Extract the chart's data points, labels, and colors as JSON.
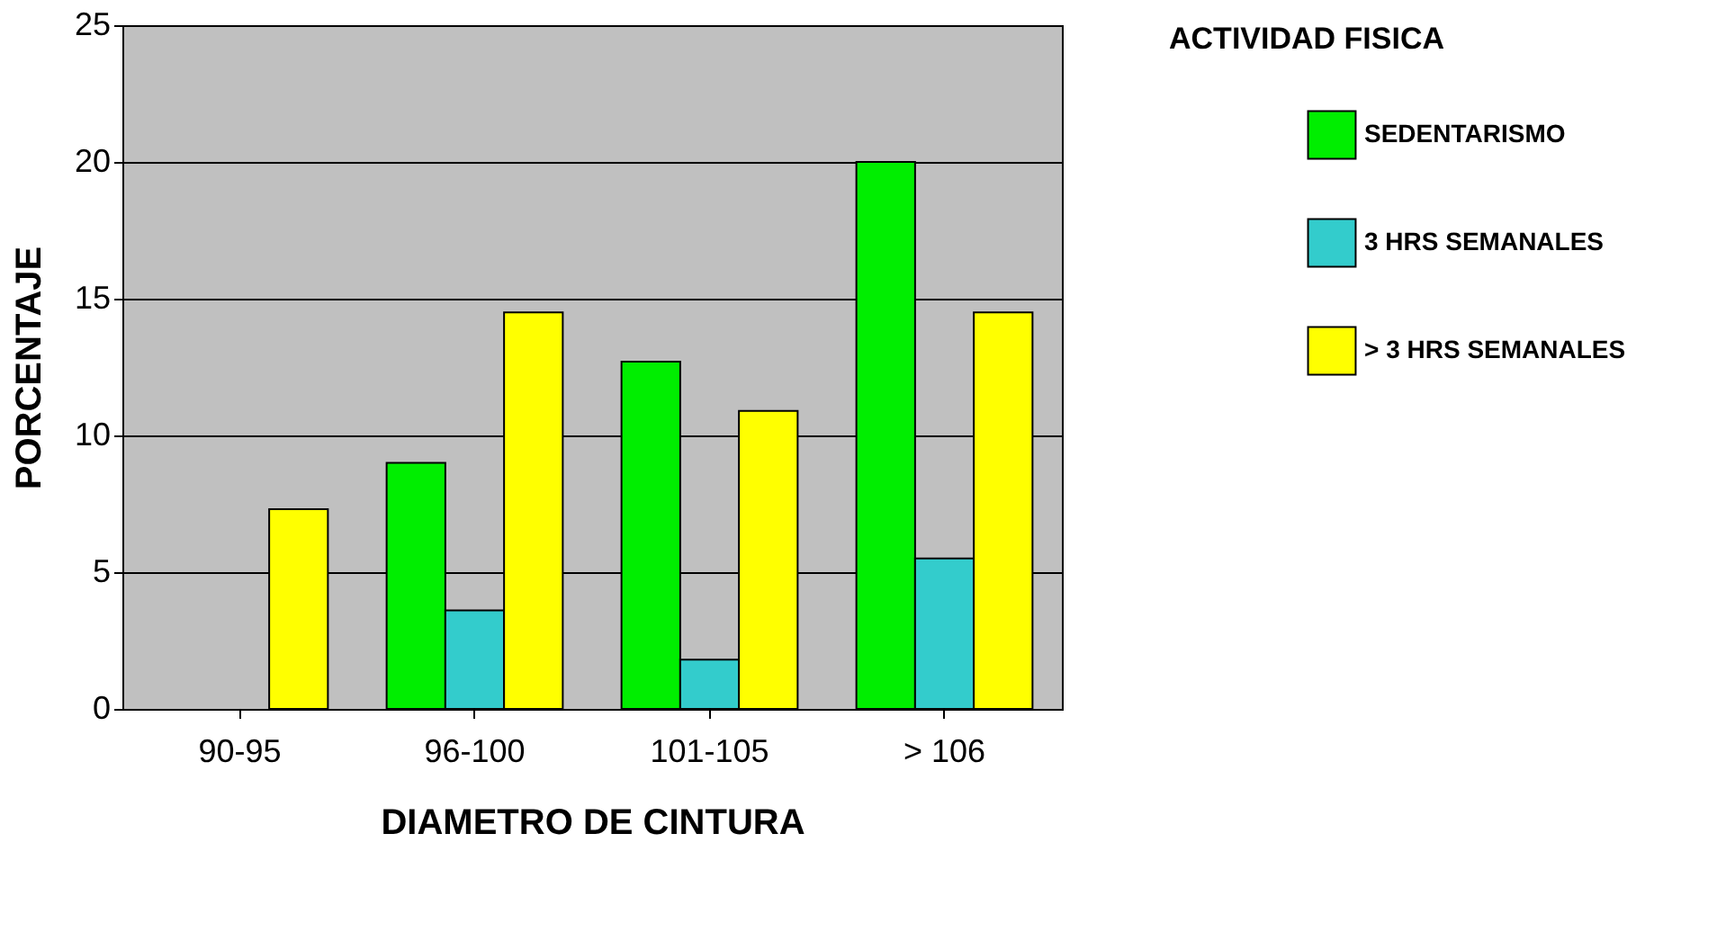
{
  "chart_data": {
    "type": "bar",
    "xlabel": "DIAMETRO DE CINTURA",
    "ylabel": "PORCENTAJE",
    "legend_title": "ACTIVIDAD FISICA",
    "categories": [
      "90-95",
      "96-100",
      "101-105",
      "> 106"
    ],
    "series": [
      {
        "name": "SEDENTARISMO",
        "color": "#00ee00",
        "values": [
          null,
          9.0,
          12.7,
          20.0
        ]
      },
      {
        "name": "3 HRS SEMANALES",
        "color": "#33cccc",
        "values": [
          null,
          3.6,
          1.8,
          5.5
        ]
      },
      {
        "name": "> 3 HRS SEMANALES",
        "color": "#ffff00",
        "values": [
          7.3,
          14.5,
          10.9,
          14.5
        ]
      }
    ],
    "ylim": [
      0,
      25
    ],
    "yticks": [
      0,
      5,
      10,
      15,
      20,
      25
    ],
    "grid": "y",
    "legend": "right"
  }
}
